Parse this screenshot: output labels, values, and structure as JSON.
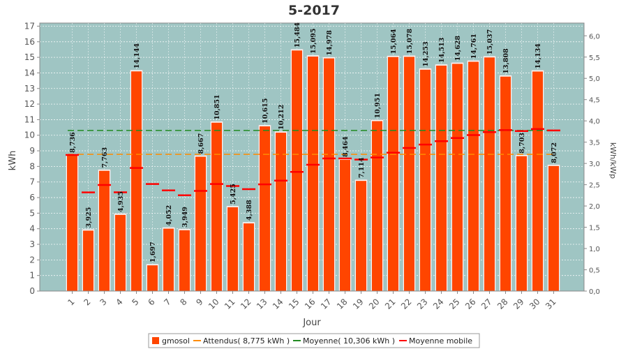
{
  "chart_data": {
    "type": "bar",
    "title": "5-2017",
    "xlabel": "Jour",
    "ylabel": "kWh",
    "y2label": "kWh/kWp",
    "ylim": [
      0,
      17.2
    ],
    "y2lim": [
      0,
      6.3
    ],
    "y_ticks": [
      0,
      1,
      2,
      3,
      4,
      5,
      6,
      7,
      8,
      9,
      10,
      11,
      12,
      13,
      14,
      15,
      16,
      17
    ],
    "y2_ticks": [
      "0,0",
      "0,5",
      "1,0",
      "1,5",
      "2,0",
      "2,5",
      "3,0",
      "3,5",
      "4,0",
      "4,5",
      "5,0",
      "5,5",
      "6,0"
    ],
    "grid": true,
    "legend_position": "bottom",
    "categories": [
      "1",
      "2",
      "3",
      "4",
      "5",
      "6",
      "7",
      "8",
      "9",
      "10",
      "11",
      "12",
      "13",
      "14",
      "15",
      "16",
      "17",
      "18",
      "19",
      "20",
      "21",
      "22",
      "23",
      "24",
      "25",
      "26",
      "27",
      "28",
      "29",
      "30",
      "31"
    ],
    "series": [
      {
        "name": "gmosol",
        "kind": "bar",
        "color": "#ff4500",
        "values": [
          8.736,
          3.925,
          7.763,
          4.935,
          14.144,
          1.697,
          4.052,
          3.949,
          8.667,
          10.851,
          5.425,
          4.388,
          10.615,
          10.212,
          15.484,
          15.095,
          14.978,
          8.464,
          7.114,
          10.951,
          15.064,
          15.078,
          14.253,
          14.513,
          14.628,
          14.761,
          15.037,
          13.808,
          8.703,
          14.134,
          8.072
        ],
        "value_labels": [
          "8,736",
          "3,925",
          "7,763",
          "4,935",
          "14,144",
          "1,697",
          "4,052",
          "3,949",
          "8,667",
          "10,851",
          "5,425",
          "4,388",
          "10,615",
          "10,212",
          "15,484",
          "15,095",
          "14,978",
          "8,464",
          "7,114",
          "10,951",
          "15,064",
          "15,078",
          "14,253",
          "14,513",
          "14,628",
          "14,761",
          "15,037",
          "13,808",
          "8,703",
          "14,134",
          "8,072"
        ]
      },
      {
        "name": "Attendus( 8,775 kWh )",
        "kind": "constant-line",
        "color": "#ff8c00",
        "value": 8.775
      },
      {
        "name": "Moyenne( 10,306 kWh )",
        "kind": "constant-line",
        "color": "#228b22",
        "value": 10.306
      },
      {
        "name": "Moyenne mobile",
        "kind": "step-marker",
        "color": "#ff0000",
        "values": [
          8.736,
          6.33,
          6.81,
          6.34,
          7.9,
          6.87,
          6.46,
          6.15,
          6.43,
          6.87,
          6.74,
          6.54,
          6.85,
          7.09,
          7.65,
          8.11,
          8.51,
          8.51,
          8.44,
          8.57,
          8.88,
          9.18,
          9.4,
          9.62,
          9.82,
          10.01,
          10.2,
          10.33,
          10.27,
          10.4,
          10.31
        ]
      }
    ],
    "legend": [
      "gmosol",
      "Attendus( 8,775 kWh )",
      "Moyenne( 10,306 kWh )",
      "Moyenne mobile"
    ]
  }
}
